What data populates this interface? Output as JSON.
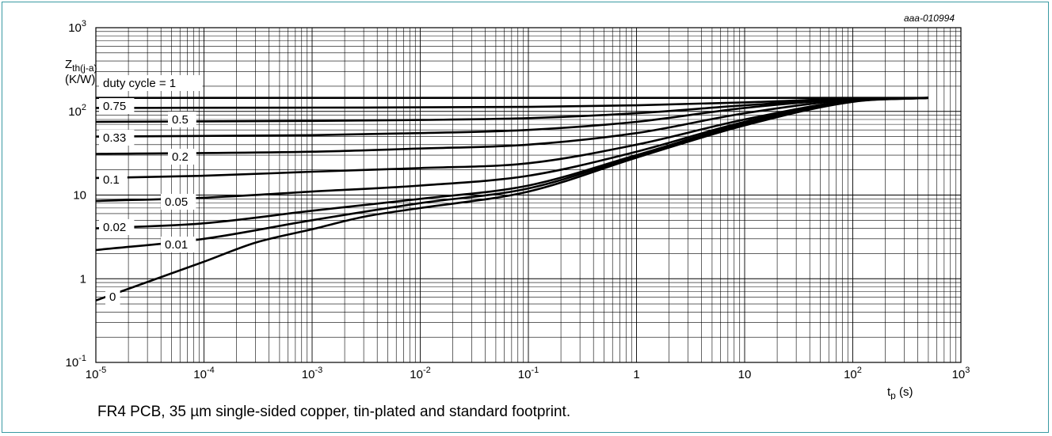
{
  "chart_data": {
    "type": "line",
    "figure_code": "aaa-010994",
    "ylabel_main": "Z",
    "ylabel_sub": "th(j-a)",
    "ylabel_unit": "(K/W)",
    "xlabel_main": "t",
    "xlabel_sub": "p",
    "xlabel_unit": " (s)",
    "x_scale": "log",
    "y_scale": "log",
    "xlim": [
      1e-05,
      1000
    ],
    "ylim": [
      0.1,
      1000
    ],
    "grid": true,
    "x_ticks": [
      {
        "base": "10",
        "exp": "-5"
      },
      {
        "base": "10",
        "exp": "-4"
      },
      {
        "base": "10",
        "exp": "-3"
      },
      {
        "base": "10",
        "exp": "-2"
      },
      {
        "base": "10",
        "exp": "-1"
      },
      {
        "base": "1",
        "exp": ""
      },
      {
        "base": "10",
        "exp": ""
      },
      {
        "base": "10",
        "exp": "2"
      },
      {
        "base": "10",
        "exp": "3"
      }
    ],
    "y_ticks": [
      {
        "base": "10",
        "exp": "-1"
      },
      {
        "base": "1",
        "exp": ""
      },
      {
        "base": "10",
        "exp": ""
      },
      {
        "base": "10",
        "exp": "2"
      },
      {
        "base": "10",
        "exp": "3"
      }
    ],
    "series": [
      {
        "name": "duty cycle = 1",
        "x": [
          1e-05,
          0.001,
          0.1,
          10,
          500
        ],
        "y": [
          145,
          145,
          145,
          145,
          145
        ]
      },
      {
        "name": "0.75",
        "x": [
          1e-05,
          0.001,
          0.1,
          1,
          10,
          100,
          500
        ],
        "y": [
          110,
          111,
          113,
          118,
          128,
          142,
          145
        ]
      },
      {
        "name": "0.5",
        "x": [
          1e-05,
          0.001,
          0.01,
          0.1,
          1,
          10,
          100,
          500
        ],
        "y": [
          75,
          77,
          79,
          83,
          95,
          118,
          142,
          145
        ]
      },
      {
        "name": "0.33",
        "x": [
          1e-05,
          0.001,
          0.01,
          0.1,
          1,
          10,
          100,
          500
        ],
        "y": [
          50,
          52,
          55,
          60,
          75,
          110,
          140,
          145
        ]
      },
      {
        "name": "0.2",
        "x": [
          1e-05,
          0.001,
          0.01,
          0.1,
          1,
          10,
          100,
          500
        ],
        "y": [
          31,
          33,
          36,
          40,
          55,
          95,
          138,
          145
        ]
      },
      {
        "name": "0.1",
        "x": [
          1e-05,
          0.0001,
          0.001,
          0.01,
          0.1,
          1,
          10,
          100,
          500
        ],
        "y": [
          16,
          17,
          19,
          21,
          24,
          40,
          80,
          135,
          145
        ]
      },
      {
        "name": "0.05",
        "x": [
          1e-05,
          0.0001,
          0.001,
          0.01,
          0.1,
          1,
          10,
          100,
          500
        ],
        "y": [
          8.5,
          9.3,
          11,
          13,
          17,
          33,
          75,
          133,
          145
        ]
      },
      {
        "name": "0.02",
        "x": [
          1e-05,
          0.0001,
          0.001,
          0.01,
          0.1,
          1,
          10,
          100,
          500
        ],
        "y": [
          4,
          4.6,
          6.5,
          9,
          13,
          30,
          72,
          132,
          145
        ]
      },
      {
        "name": "0.01",
        "x": [
          1e-05,
          0.0001,
          0.001,
          0.01,
          0.1,
          1,
          10,
          100,
          500
        ],
        "y": [
          2.2,
          3,
          5,
          8,
          12,
          29,
          70,
          131,
          145
        ]
      },
      {
        "name": "0",
        "x": [
          1e-05,
          0.0001,
          0.0003,
          0.001,
          0.003,
          0.01,
          0.1,
          1,
          10,
          100,
          500
        ],
        "y": [
          0.55,
          1.6,
          2.7,
          3.9,
          5.5,
          7,
          11,
          28,
          68,
          130,
          145
        ]
      }
    ]
  },
  "caption": "FR4 PCB, 35 µm single-sided copper, tin-plated and standard footprint."
}
